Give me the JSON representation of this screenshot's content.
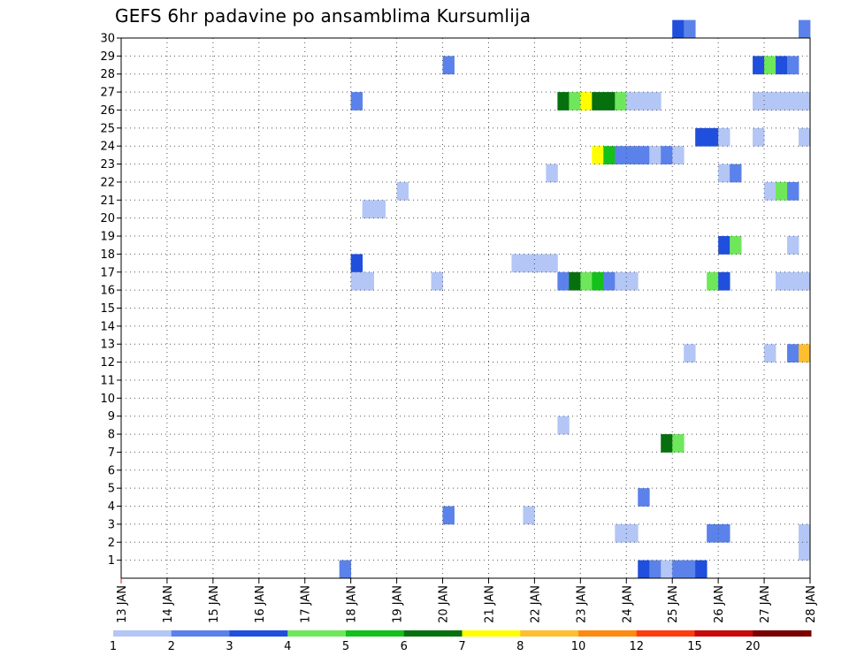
{
  "chart_data": {
    "type": "heatmap",
    "title": "GEFS 6hr padavine po ansamblima Kursumlija",
    "x_tick_labels": [
      "13 JAN",
      "14 JAN",
      "15 JAN",
      "16 JAN",
      "17 JAN",
      "18 JAN",
      "19 JAN",
      "20 JAN",
      "21 JAN",
      "22 JAN",
      "23 JAN",
      "24 JAN",
      "25 JAN",
      "26 JAN",
      "27 JAN",
      "28 JAN"
    ],
    "y_tick_labels": [
      "1",
      "2",
      "3",
      "4",
      "5",
      "6",
      "7",
      "8",
      "9",
      "10",
      "11",
      "12",
      "13",
      "14",
      "15",
      "16",
      "17",
      "18",
      "19",
      "20",
      "21",
      "22",
      "23",
      "24",
      "25",
      "26",
      "27",
      "28",
      "29",
      "30"
    ],
    "xlim": [
      0,
      60
    ],
    "ylim": [
      0,
      30
    ],
    "grid": true,
    "legend": {
      "placement": "bottom",
      "thresholds": [
        "1",
        "2",
        "3",
        "4",
        "5",
        "6",
        "7",
        "8",
        "10",
        "12",
        "15",
        "20"
      ],
      "colors": [
        "#b3c6f5",
        "#5b82ea",
        "#1f4fdc",
        "#6ee85a",
        "#14c01a",
        "#06700e",
        "#ffff00",
        "#ffbe30",
        "#ff8a10",
        "#ff3c10",
        "#c80a0a",
        "#780000"
      ]
    },
    "cells": [
      {
        "x": 48,
        "y": 30,
        "c": 2
      },
      {
        "x": 49,
        "y": 30,
        "c": 1
      },
      {
        "x": 59,
        "y": 30,
        "c": 1
      },
      {
        "x": 28,
        "y": 28,
        "c": 1
      },
      {
        "x": 55,
        "y": 28,
        "c": 2
      },
      {
        "x": 56,
        "y": 28,
        "c": 3
      },
      {
        "x": 57,
        "y": 28,
        "c": 2
      },
      {
        "x": 58,
        "y": 28,
        "c": 1
      },
      {
        "x": 20,
        "y": 26,
        "c": 1
      },
      {
        "x": 38,
        "y": 26,
        "c": 5
      },
      {
        "x": 39,
        "y": 26,
        "c": 3
      },
      {
        "x": 40,
        "y": 26,
        "c": 6
      },
      {
        "x": 41,
        "y": 26,
        "c": 5
      },
      {
        "x": 42,
        "y": 26,
        "c": 5
      },
      {
        "x": 43,
        "y": 26,
        "c": 3
      },
      {
        "x": 44,
        "y": 26,
        "c": 0
      },
      {
        "x": 45,
        "y": 26,
        "c": 0
      },
      {
        "x": 46,
        "y": 26,
        "c": 0
      },
      {
        "x": 55,
        "y": 26,
        "c": 0
      },
      {
        "x": 56,
        "y": 26,
        "c": 0
      },
      {
        "x": 57,
        "y": 26,
        "c": 0
      },
      {
        "x": 58,
        "y": 26,
        "c": 0
      },
      {
        "x": 59,
        "y": 26,
        "c": 0
      },
      {
        "x": 50,
        "y": 24,
        "c": 2
      },
      {
        "x": 51,
        "y": 24,
        "c": 2
      },
      {
        "x": 52,
        "y": 24,
        "c": 0
      },
      {
        "x": 55,
        "y": 24,
        "c": 0
      },
      {
        "x": 59,
        "y": 24,
        "c": 0
      },
      {
        "x": 41,
        "y": 23,
        "c": 6
      },
      {
        "x": 42,
        "y": 23,
        "c": 4
      },
      {
        "x": 43,
        "y": 23,
        "c": 1
      },
      {
        "x": 44,
        "y": 23,
        "c": 1
      },
      {
        "x": 45,
        "y": 23,
        "c": 1
      },
      {
        "x": 46,
        "y": 23,
        "c": 0
      },
      {
        "x": 47,
        "y": 23,
        "c": 1
      },
      {
        "x": 48,
        "y": 23,
        "c": 0
      },
      {
        "x": 37,
        "y": 22,
        "c": 0
      },
      {
        "x": 52,
        "y": 22,
        "c": 0
      },
      {
        "x": 53,
        "y": 22,
        "c": 1
      },
      {
        "x": 24,
        "y": 21,
        "c": 0
      },
      {
        "x": 56,
        "y": 21,
        "c": 0
      },
      {
        "x": 57,
        "y": 21,
        "c": 3
      },
      {
        "x": 58,
        "y": 21,
        "c": 1
      },
      {
        "x": 21,
        "y": 20,
        "c": 0
      },
      {
        "x": 22,
        "y": 20,
        "c": 0
      },
      {
        "x": 52,
        "y": 18,
        "c": 2
      },
      {
        "x": 53,
        "y": 18,
        "c": 3
      },
      {
        "x": 58,
        "y": 18,
        "c": 0
      },
      {
        "x": 20,
        "y": 17,
        "c": 2
      },
      {
        "x": 34,
        "y": 17,
        "c": 0
      },
      {
        "x": 35,
        "y": 17,
        "c": 0
      },
      {
        "x": 36,
        "y": 17,
        "c": 0
      },
      {
        "x": 37,
        "y": 17,
        "c": 0
      },
      {
        "x": 20,
        "y": 16,
        "c": 0
      },
      {
        "x": 21,
        "y": 16,
        "c": 0
      },
      {
        "x": 27,
        "y": 16,
        "c": 0
      },
      {
        "x": 38,
        "y": 16,
        "c": 1
      },
      {
        "x": 39,
        "y": 16,
        "c": 5
      },
      {
        "x": 40,
        "y": 16,
        "c": 3
      },
      {
        "x": 41,
        "y": 16,
        "c": 4
      },
      {
        "x": 42,
        "y": 16,
        "c": 1
      },
      {
        "x": 43,
        "y": 16,
        "c": 0
      },
      {
        "x": 44,
        "y": 16,
        "c": 0
      },
      {
        "x": 51,
        "y": 16,
        "c": 3
      },
      {
        "x": 52,
        "y": 16,
        "c": 2
      },
      {
        "x": 57,
        "y": 16,
        "c": 0
      },
      {
        "x": 58,
        "y": 16,
        "c": 0
      },
      {
        "x": 59,
        "y": 16,
        "c": 0
      },
      {
        "x": 49,
        "y": 12,
        "c": 0
      },
      {
        "x": 56,
        "y": 12,
        "c": 0
      },
      {
        "x": 58,
        "y": 12,
        "c": 1
      },
      {
        "x": 59,
        "y": 12,
        "c": 7
      },
      {
        "x": 38,
        "y": 8,
        "c": 0
      },
      {
        "x": 47,
        "y": 7,
        "c": 5
      },
      {
        "x": 48,
        "y": 7,
        "c": 3
      },
      {
        "x": 45,
        "y": 4,
        "c": 1
      },
      {
        "x": 28,
        "y": 3,
        "c": 1
      },
      {
        "x": 35,
        "y": 3,
        "c": 0
      },
      {
        "x": 43,
        "y": 2,
        "c": 0
      },
      {
        "x": 44,
        "y": 2,
        "c": 0
      },
      {
        "x": 51,
        "y": 2,
        "c": 1
      },
      {
        "x": 52,
        "y": 2,
        "c": 1
      },
      {
        "x": 59,
        "y": 2,
        "c": 0
      },
      {
        "x": 59,
        "y": 1,
        "c": 0
      },
      {
        "x": 19,
        "y": 0,
        "c": 1
      },
      {
        "x": 45,
        "y": 0,
        "c": 2
      },
      {
        "x": 46,
        "y": 0,
        "c": 1
      },
      {
        "x": 47,
        "y": 0,
        "c": 0
      },
      {
        "x": 48,
        "y": 0,
        "c": 1
      },
      {
        "x": 49,
        "y": 0,
        "c": 1
      },
      {
        "x": 50,
        "y": 0,
        "c": 2
      }
    ]
  }
}
